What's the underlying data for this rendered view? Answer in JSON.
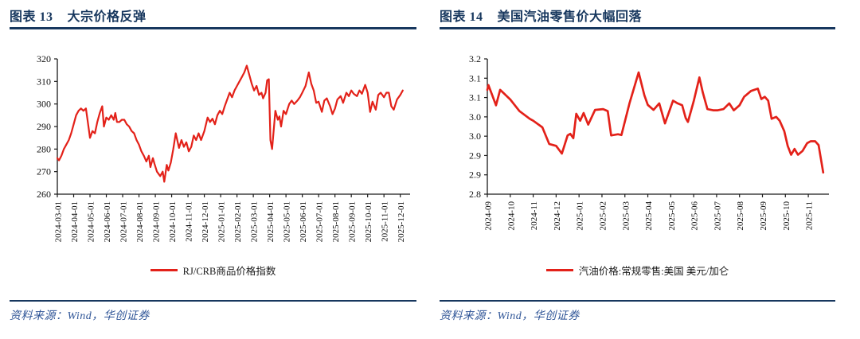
{
  "colors": {
    "accent_navy": "#17375E",
    "line_red": "#E32119",
    "source_blue": "#2F5597",
    "axis": "#1a1a1a",
    "tick_text": "#111111"
  },
  "panels": [
    {
      "figure_label": "图表 13",
      "figure_title": "大宗价格反弹",
      "legend_label": "RJ/CRB商品价格指数",
      "source_text": "资料来源：Wind，华创证券"
    },
    {
      "figure_label": "图表 14",
      "figure_title": "美国汽油零售价大幅回落",
      "legend_label": "汽油价格:常规零售:美国 美元/加仑",
      "source_text": "资料来源：Wind，华创证券"
    }
  ],
  "chart_data": [
    {
      "type": "line",
      "title": "大宗价格反弹",
      "xlabel": "",
      "ylabel": "",
      "grid": false,
      "legend_position": "bottom",
      "xlim": [
        0,
        21.6
      ],
      "ylim": [
        260,
        320
      ],
      "x_ticks": [
        "2024-03-01",
        "2024-04-01",
        "2024-05-01",
        "2024-06-01",
        "2024-07-01",
        "2024-08-01",
        "2024-09-01",
        "2024-10-01",
        "2024-11-01",
        "2024-12-01",
        "2025-01-01",
        "2025-02-01",
        "2025-03-01",
        "2025-04-01",
        "2025-05-01",
        "2025-06-01",
        "2025-07-01",
        "2025-08-01",
        "2025-09-01",
        "2025-10-01",
        "2025-11-01",
        "2025-12-01"
      ],
      "y_ticks": [
        {
          "v": 260,
          "label": "260"
        },
        {
          "v": 270,
          "label": "270"
        },
        {
          "v": 280,
          "label": "280"
        },
        {
          "v": 290,
          "label": "290"
        },
        {
          "v": 300,
          "label": "300"
        },
        {
          "v": 310,
          "label": "310"
        },
        {
          "v": 320,
          "label": "320"
        }
      ],
      "series": [
        {
          "name": "RJ/CRB商品价格指数",
          "color": "#E32119",
          "width": 2.2,
          "points": [
            [
              0,
              276
            ],
            [
              0.1,
              275
            ],
            [
              0.25,
              277
            ],
            [
              0.4,
              280
            ],
            [
              0.55,
              282
            ],
            [
              0.7,
              284
            ],
            [
              0.85,
              287
            ],
            [
              1.0,
              291
            ],
            [
              1.15,
              295
            ],
            [
              1.3,
              297
            ],
            [
              1.45,
              298
            ],
            [
              1.6,
              297
            ],
            [
              1.75,
              298
            ],
            [
              1.85,
              293
            ],
            [
              2.0,
              285
            ],
            [
              2.15,
              288
            ],
            [
              2.3,
              287
            ],
            [
              2.45,
              292
            ],
            [
              2.6,
              296
            ],
            [
              2.75,
              299
            ],
            [
              2.85,
              290
            ],
            [
              3.0,
              294
            ],
            [
              3.15,
              293
            ],
            [
              3.3,
              295
            ],
            [
              3.45,
              293
            ],
            [
              3.55,
              296
            ],
            [
              3.65,
              292
            ],
            [
              3.8,
              292
            ],
            [
              3.95,
              293
            ],
            [
              4.1,
              293
            ],
            [
              4.25,
              291
            ],
            [
              4.4,
              290
            ],
            [
              4.55,
              288
            ],
            [
              4.7,
              287
            ],
            [
              4.85,
              284
            ],
            [
              5.0,
              282
            ],
            [
              5.15,
              279
            ],
            [
              5.3,
              277
            ],
            [
              5.45,
              274.5
            ],
            [
              5.6,
              277
            ],
            [
              5.7,
              272
            ],
            [
              5.85,
              276
            ],
            [
              5.95,
              273.5
            ],
            [
              6.1,
              270
            ],
            [
              6.3,
              268
            ],
            [
              6.45,
              270
            ],
            [
              6.55,
              265.5
            ],
            [
              6.7,
              273
            ],
            [
              6.8,
              270.5
            ],
            [
              6.95,
              274
            ],
            [
              7.1,
              280
            ],
            [
              7.25,
              287
            ],
            [
              7.45,
              280.5
            ],
            [
              7.6,
              284
            ],
            [
              7.75,
              281
            ],
            [
              7.9,
              283
            ],
            [
              8.05,
              279
            ],
            [
              8.2,
              281
            ],
            [
              8.35,
              286
            ],
            [
              8.5,
              284
            ],
            [
              8.65,
              287
            ],
            [
              8.8,
              284
            ],
            [
              9.0,
              288
            ],
            [
              9.2,
              294
            ],
            [
              9.35,
              292
            ],
            [
              9.5,
              293.5
            ],
            [
              9.65,
              291
            ],
            [
              9.8,
              295
            ],
            [
              9.95,
              297
            ],
            [
              10.1,
              295.5
            ],
            [
              10.25,
              299
            ],
            [
              10.4,
              302
            ],
            [
              10.55,
              305
            ],
            [
              10.7,
              303
            ],
            [
              10.85,
              306
            ],
            [
              11.0,
              308
            ],
            [
              11.15,
              310
            ],
            [
              11.3,
              312
            ],
            [
              11.45,
              314
            ],
            [
              11.6,
              317
            ],
            [
              11.75,
              313
            ],
            [
              11.9,
              309
            ],
            [
              12.05,
              306
            ],
            [
              12.2,
              308
            ],
            [
              12.35,
              304
            ],
            [
              12.5,
              305
            ],
            [
              12.6,
              302.5
            ],
            [
              12.75,
              305
            ],
            [
              12.85,
              310.5
            ],
            [
              12.95,
              311
            ],
            [
              13.05,
              284
            ],
            [
              13.15,
              280
            ],
            [
              13.35,
              297
            ],
            [
              13.5,
              293
            ],
            [
              13.6,
              294.5
            ],
            [
              13.7,
              290
            ],
            [
              13.85,
              297
            ],
            [
              14.0,
              295.5
            ],
            [
              14.2,
              300
            ],
            [
              14.35,
              301.5
            ],
            [
              14.5,
              300
            ],
            [
              14.7,
              301.5
            ],
            [
              14.85,
              303
            ],
            [
              15.0,
              305
            ],
            [
              15.2,
              308
            ],
            [
              15.4,
              314
            ],
            [
              15.55,
              309
            ],
            [
              15.7,
              306
            ],
            [
              15.85,
              300.5
            ],
            [
              16.0,
              301
            ],
            [
              16.2,
              296.5
            ],
            [
              16.35,
              301.5
            ],
            [
              16.5,
              302.5
            ],
            [
              16.7,
              299
            ],
            [
              16.85,
              295.5
            ],
            [
              17.0,
              298
            ],
            [
              17.15,
              302
            ],
            [
              17.35,
              303.5
            ],
            [
              17.5,
              300.5
            ],
            [
              17.7,
              305
            ],
            [
              17.85,
              303.5
            ],
            [
              18.0,
              306
            ],
            [
              18.15,
              304.5
            ],
            [
              18.35,
              303.5
            ],
            [
              18.5,
              306
            ],
            [
              18.65,
              304.5
            ],
            [
              18.85,
              308.5
            ],
            [
              19.0,
              305
            ],
            [
              19.15,
              296.5
            ],
            [
              19.3,
              301
            ],
            [
              19.5,
              297.5
            ],
            [
              19.65,
              304
            ],
            [
              19.8,
              305
            ],
            [
              20.0,
              303
            ],
            [
              20.15,
              305
            ],
            [
              20.3,
              305
            ],
            [
              20.45,
              299
            ],
            [
              20.6,
              297.5
            ],
            [
              20.8,
              302
            ],
            [
              21.0,
              304
            ],
            [
              21.15,
              306
            ]
          ]
        }
      ]
    },
    {
      "type": "line",
      "title": "美国汽油零售价大幅回落",
      "xlabel": "",
      "ylabel": "",
      "grid": false,
      "legend_position": "bottom",
      "xlim": [
        0,
        14.9
      ],
      "ylim": [
        2.8,
        3.15
      ],
      "x_ticks": [
        "2024-09",
        "2024-10",
        "2024-11",
        "2024-12",
        "2025-01",
        "2025-02",
        "2025-03",
        "2025-04",
        "2025-05",
        "2025-06",
        "2025-07",
        "2025-08",
        "2025-09",
        "2025-10",
        "2025-11"
      ],
      "y_ticks": [
        {
          "v": 2.8,
          "label": "2.8"
        },
        {
          "v": 2.85,
          "label": "2.9"
        },
        {
          "v": 2.9,
          "label": "2.9"
        },
        {
          "v": 2.95,
          "label": "3.0"
        },
        {
          "v": 3.0,
          "label": "3.0"
        },
        {
          "v": 3.05,
          "label": "3.1"
        },
        {
          "v": 3.1,
          "label": "3.1"
        },
        {
          "v": 3.15,
          "label": "3.2"
        }
      ],
      "series": [
        {
          "name": "汽油价格:常规零售:美国 美元/加仑",
          "color": "#E32119",
          "width": 2.7,
          "points": [
            [
              0,
              3.07
            ],
            [
              0.05,
              3.082
            ],
            [
              0.38,
              3.03
            ],
            [
              0.56,
              3.07
            ],
            [
              1.0,
              3.045
            ],
            [
              1.4,
              3.015
            ],
            [
              1.85,
              2.995
            ],
            [
              2.0,
              2.99
            ],
            [
              2.4,
              2.973
            ],
            [
              2.7,
              2.93
            ],
            [
              3.0,
              2.925
            ],
            [
              3.25,
              2.905
            ],
            [
              3.5,
              2.952
            ],
            [
              3.62,
              2.956
            ],
            [
              3.75,
              2.945
            ],
            [
              3.88,
              3.008
            ],
            [
              4.05,
              2.99
            ],
            [
              4.2,
              3.01
            ],
            [
              4.4,
              2.98
            ],
            [
              4.7,
              3.018
            ],
            [
              5.05,
              3.02
            ],
            [
              5.25,
              3.015
            ],
            [
              5.4,
              2.952
            ],
            [
              5.7,
              2.955
            ],
            [
              5.85,
              2.953
            ],
            [
              6.2,
              3.035
            ],
            [
              6.6,
              3.115
            ],
            [
              6.85,
              3.056
            ],
            [
              7.0,
              3.031
            ],
            [
              7.25,
              3.018
            ],
            [
              7.5,
              3.035
            ],
            [
              7.75,
              2.983
            ],
            [
              8.1,
              3.042
            ],
            [
              8.3,
              3.035
            ],
            [
              8.5,
              3.03
            ],
            [
              8.65,
              2.997
            ],
            [
              8.75,
              2.987
            ],
            [
              9.0,
              3.04
            ],
            [
              9.25,
              3.102
            ],
            [
              9.4,
              3.063
            ],
            [
              9.6,
              3.02
            ],
            [
              9.85,
              3.017
            ],
            [
              10.05,
              3.017
            ],
            [
              10.3,
              3.02
            ],
            [
              10.55,
              3.035
            ],
            [
              10.75,
              3.017
            ],
            [
              11.0,
              3.03
            ],
            [
              11.2,
              3.052
            ],
            [
              11.5,
              3.067
            ],
            [
              11.8,
              3.073
            ],
            [
              11.95,
              3.046
            ],
            [
              12.1,
              3.052
            ],
            [
              12.25,
              3.042
            ],
            [
              12.4,
              2.995
            ],
            [
              12.6,
              3.0
            ],
            [
              12.75,
              2.99
            ],
            [
              12.95,
              2.963
            ],
            [
              13.1,
              2.925
            ],
            [
              13.25,
              2.902
            ],
            [
              13.4,
              2.917
            ],
            [
              13.55,
              2.902
            ],
            [
              13.75,
              2.912
            ],
            [
              13.95,
              2.932
            ],
            [
              14.1,
              2.937
            ],
            [
              14.3,
              2.937
            ],
            [
              14.45,
              2.927
            ],
            [
              14.65,
              2.856
            ]
          ]
        }
      ]
    }
  ]
}
